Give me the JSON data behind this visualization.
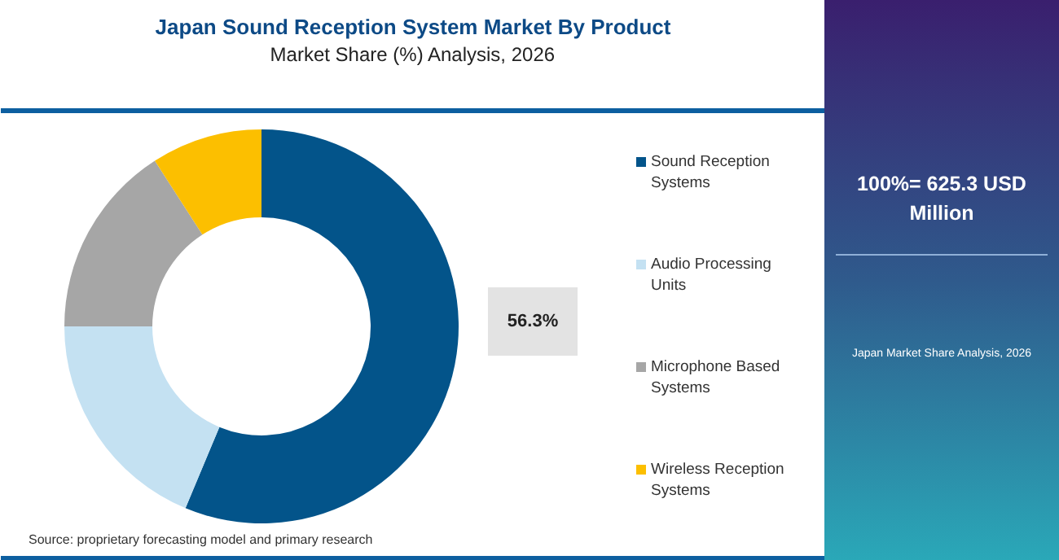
{
  "chart_data": {
    "type": "donut",
    "title": "Japan Sound Reception System Market By Product",
    "subtitle": "Market Share (%) Analysis, 2026",
    "categories": [
      "Sound Reception Systems",
      "Audio Processing Units",
      "Microphone Based Systems",
      "Wireless Reception Systems"
    ],
    "values": [
      56.3,
      18.7,
      15.9,
      9.1
    ],
    "colors": [
      "#03548a",
      "#c4e1f2",
      "#a6a6a6",
      "#fcbf00"
    ],
    "value_labels": [
      "56.3%",
      null,
      null,
      null
    ],
    "legend": "right",
    "annotations": [
      "100%= 625.3 USD Million",
      "Japan Market Share Analysis, 2026",
      "Source: proprietary forecasting model and primary research"
    ]
  }
}
